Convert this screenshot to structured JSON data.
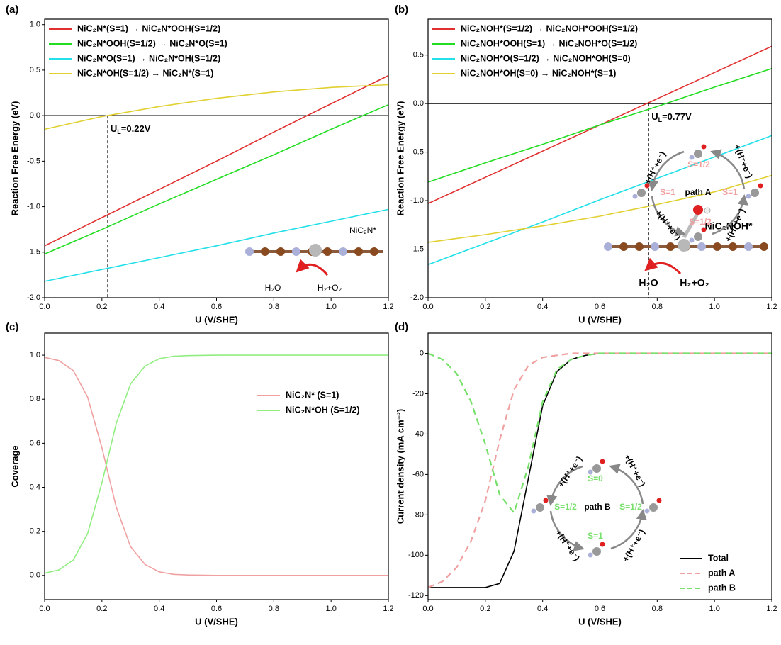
{
  "chart_data": [
    {
      "type": "line",
      "panel_label": "(a)",
      "xlabel": "U (V/SHE)",
      "ylabel": "Reaction Free Energy (eV)",
      "x": [
        0,
        0.2,
        0.4,
        0.6,
        0.8,
        1.0,
        1.2
      ],
      "xlim": [
        0,
        1.2
      ],
      "ylim": [
        -2.0,
        1.06
      ],
      "xticks": [
        {
          "value": 0,
          "label": "0.0"
        },
        0.2,
        0.4,
        0.6,
        0.8,
        {
          "value": 1,
          "label": "1.0"
        },
        1.2
      ],
      "yticks": [
        {
          "value": -2,
          "label": "-2.0"
        },
        -1.5,
        {
          "value": -1,
          "label": "-1.0"
        },
        -0.5,
        {
          "value": 0,
          "label": "0.0"
        },
        0.5,
        {
          "value": 1,
          "label": "1.0"
        }
      ],
      "legend": "upper left",
      "reference_line": 0,
      "ul_x": 0.22,
      "ul_label": [
        "U",
        "L",
        "=0.22V"
      ],
      "series": [
        {
          "name": "NiC₂N*(S=1) → NiC₂N*OOH(S=1/2)",
          "color": "#e03030",
          "values": [
            -1.43,
            -1.12,
            -0.81,
            -0.5,
            -0.18,
            0.13,
            0.44
          ]
        },
        {
          "name": "NiC₂N*OOH(S=1/2) → NiC₂N*O(S=1)",
          "color": "#22dd22",
          "values": [
            -1.52,
            -1.25,
            -0.97,
            -0.7,
            -0.43,
            -0.15,
            0.12
          ]
        },
        {
          "name": "NiC₂N*O(S=1) → NiC₂N*OH(S=1/2)",
          "color": "#22e0e8",
          "values": [
            -1.82,
            -1.69,
            -1.56,
            -1.43,
            -1.29,
            -1.16,
            -1.03
          ]
        },
        {
          "name": "NiC₂N*OH(S=1/2) → NiC₂N*(S=1)",
          "color": "#e0d030",
          "values": [
            -0.15,
            -0.01,
            0.1,
            0.19,
            0.26,
            0.31,
            0.34
          ]
        }
      ],
      "annotations": [
        "NiC₂N*",
        "H₂O",
        "H₂+O₂"
      ]
    },
    {
      "type": "line",
      "panel_label": "(b)",
      "xlabel": "U (V/SHE)",
      "ylabel": "Reaction Free Energy (eV)",
      "x": [
        0,
        0.2,
        0.4,
        0.6,
        0.8,
        1.0,
        1.2
      ],
      "xlim": [
        0,
        1.2
      ],
      "ylim": [
        -2.0,
        0.87
      ],
      "xticks": [
        {
          "value": 0,
          "label": "0.0"
        },
        0.2,
        0.4,
        0.6,
        0.8,
        {
          "value": 1,
          "label": "1.0"
        },
        1.2
      ],
      "yticks": [
        {
          "value": -2,
          "label": "-2.0"
        },
        -1.5,
        {
          "value": -1,
          "label": "-1.0"
        },
        -0.5,
        {
          "value": 0,
          "label": "0.0"
        },
        0.5
      ],
      "legend": "upper left",
      "reference_line": 0,
      "ul_x": 0.77,
      "ul_label": [
        "U",
        "L",
        "=0.77V"
      ],
      "series": [
        {
          "name": "NiC₂NOH*(S=1/2) → NiC₂NOH*OOH(S=1/2)",
          "color": "#e03030",
          "values": [
            -1.03,
            -0.76,
            -0.49,
            -0.22,
            0.05,
            0.32,
            0.59
          ]
        },
        {
          "name": "NiC₂NOH*OOH(S=1) → NiC₂NOH*O(S=1/2)",
          "color": "#22dd22",
          "values": [
            -0.81,
            -0.61,
            -0.42,
            -0.22,
            -0.03,
            0.17,
            0.36
          ]
        },
        {
          "name": "NiC₂NOH*O(S=1/2) → NiC₂NOH*OH(S=0)",
          "color": "#22e0e8",
          "values": [
            -1.66,
            -1.44,
            -1.22,
            -0.99,
            -0.77,
            -0.55,
            -0.33
          ]
        },
        {
          "name": "NiC₂NOH*OH(S=0) → NiC₂NOH*(S=1)",
          "color": "#e0d030",
          "values": [
            -1.43,
            -1.35,
            -1.26,
            -1.16,
            -1.04,
            -0.91,
            -0.74
          ]
        }
      ],
      "annotations": [
        "NiC₂NOH*",
        "H₂O",
        "H₂+O₂"
      ]
    },
    {
      "type": "line",
      "panel_label": "(c)",
      "xlabel": "U (V/SHE)",
      "ylabel": "Coverage",
      "x": [
        0,
        0.05,
        0.1,
        0.15,
        0.2,
        0.25,
        0.3,
        0.35,
        0.4,
        0.45,
        0.5,
        0.6,
        0.8,
        1.0,
        1.2
      ],
      "xlim": [
        0,
        1.2
      ],
      "ylim": [
        -0.11,
        1.1
      ],
      "xticks": [
        {
          "value": 0,
          "label": "0.0"
        },
        0.2,
        0.4,
        0.6,
        0.8,
        {
          "value": 1,
          "label": "1.0"
        },
        1.2
      ],
      "yticks": [
        {
          "value": 0,
          "label": "0.0"
        },
        0.2,
        0.4,
        0.6,
        0.8,
        {
          "value": 1,
          "label": "1.0"
        }
      ],
      "legend": "center right",
      "series": [
        {
          "name": "NiC₂N* (S=1)",
          "color": "#f0a0a0",
          "values": [
            0.99,
            0.975,
            0.93,
            0.81,
            0.58,
            0.31,
            0.13,
            0.05,
            0.016,
            0.005,
            0.002,
            0,
            0,
            0,
            0
          ]
        },
        {
          "name": "NiC₂N*OH (S=1/2)",
          "color": "#90ee80",
          "values": [
            0.01,
            0.025,
            0.07,
            0.19,
            0.42,
            0.69,
            0.87,
            0.95,
            0.984,
            0.995,
            0.998,
            1,
            1,
            1,
            1
          ]
        }
      ]
    },
    {
      "type": "line",
      "panel_label": "(d)",
      "xlabel": "U (V/SHE)",
      "ylabel": "Current density (mA cm⁻²)",
      "x": [
        0,
        0.05,
        0.1,
        0.15,
        0.2,
        0.25,
        0.3,
        0.35,
        0.4,
        0.45,
        0.5,
        0.55,
        0.6,
        0.8,
        1.0,
        1.2
      ],
      "xlim": [
        0,
        1.2
      ],
      "ylim": [
        -122,
        10
      ],
      "xticks": [
        {
          "value": 0,
          "label": "0.0"
        },
        0.2,
        0.4,
        0.6,
        0.8,
        {
          "value": 1,
          "label": "1.0"
        },
        1.2
      ],
      "yticks": [
        -120,
        -100,
        -80,
        -60,
        -40,
        -20,
        0
      ],
      "legend": "lower right",
      "series": [
        {
          "name": "Total",
          "color": "#000000",
          "style": "solid",
          "values": [
            -116,
            -116,
            -116,
            -116,
            -116,
            -114,
            -98,
            -62,
            -26,
            -9,
            -3,
            -1,
            0,
            0,
            0,
            0
          ]
        },
        {
          "name": "path A",
          "color": "#f0a0a0",
          "style": "dashed",
          "values": [
            -116,
            -113,
            -106,
            -93,
            -73,
            -43,
            -18,
            -6,
            -2,
            -1,
            0,
            0,
            0,
            0,
            0,
            0
          ]
        },
        {
          "name": "path B",
          "color": "#77e06a",
          "style": "dashed",
          "values": [
            0,
            -3,
            -10,
            -24,
            -45,
            -70,
            -79,
            -56,
            -24,
            -8,
            -3,
            -1,
            0,
            0,
            0,
            0
          ]
        }
      ],
      "annotations": [
        "S=1/2",
        "S=1",
        "path A",
        "S=1",
        "S=1/2",
        "S=0",
        "S=1/2",
        "path B",
        "S=1/2",
        "S=1",
        "+(H⁺+e⁻)",
        "+(H⁺+e⁻)",
        "+(H⁺+e⁻)",
        "+(H⁺+e⁻)",
        "+(H⁺+e⁻)",
        "+(H⁺+e⁻)",
        "+(H⁺+e⁻)",
        "+(H⁺+e⁻)"
      ]
    }
  ]
}
